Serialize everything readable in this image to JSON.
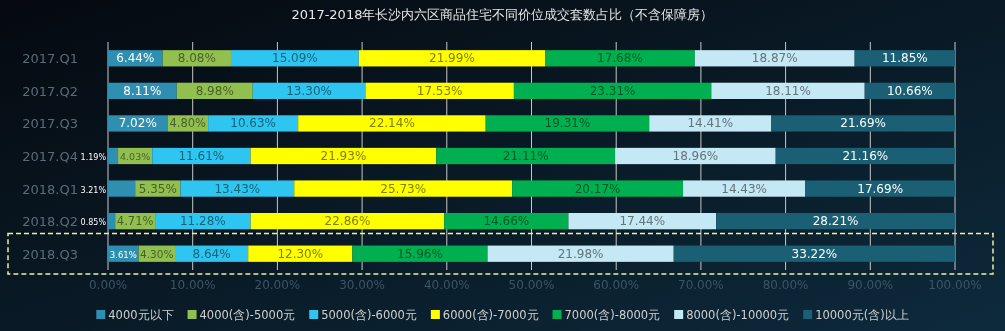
{
  "chart_data": {
    "type": "bar",
    "orientation": "horizontal",
    "stacked": true,
    "title": "2017-2018年长沙内六区商品住宅不同价位成交套数占比（不含保障房）",
    "categories": [
      "2017.Q1",
      "2017.Q2",
      "2017.Q3",
      "2017.Q4",
      "2018.Q1",
      "2018.Q2",
      "2018.Q3"
    ],
    "series": [
      {
        "name": "4000元以下",
        "color": "#2e8fb0",
        "values": [
          6.44,
          8.11,
          7.02,
          1.19,
          3.21,
          0.85,
          3.61
        ],
        "value_labels": [
          "6.44%",
          "8.11%",
          "7.02%",
          "1.19%",
          "3.21%",
          "0.85%",
          "3.61%"
        ]
      },
      {
        "name": "4000(含)-5000元",
        "color": "#92c050",
        "values": [
          8.08,
          8.98,
          4.8,
          4.03,
          5.35,
          4.71,
          4.3
        ],
        "value_labels": [
          "8.08%",
          "8.98%",
          "4.80%",
          "4.03%",
          "5.35%",
          "4.71%",
          "4.30%"
        ]
      },
      {
        "name": "5000(含)-6000元",
        "color": "#2ec5f0",
        "values": [
          15.09,
          13.3,
          10.63,
          11.61,
          13.43,
          11.28,
          8.64
        ],
        "value_labels": [
          "15.09%",
          "13.30%",
          "10.63%",
          "11.61%",
          "13.43%",
          "11.28%",
          "8.64%"
        ]
      },
      {
        "name": "6000(含)-7000元",
        "color": "#ffff00",
        "values": [
          21.99,
          17.53,
          22.14,
          21.93,
          25.73,
          22.86,
          12.3
        ],
        "value_labels": [
          "21.99%",
          "17.53%",
          "22.14%",
          "21.93%",
          "25.73%",
          "22.86%",
          "12.30%"
        ]
      },
      {
        "name": "7000(含)-8000元",
        "color": "#00b050",
        "values": [
          17.68,
          23.31,
          19.31,
          21.11,
          20.17,
          14.66,
          15.96
        ],
        "value_labels": [
          "17.68%",
          "23.31%",
          "19.31%",
          "21.11%",
          "20.17%",
          "14.66%",
          "15.96%"
        ]
      },
      {
        "name": "8000(含)-10000元",
        "color": "#c5e8f5",
        "values": [
          18.87,
          18.11,
          14.41,
          18.96,
          14.43,
          17.44,
          21.98
        ],
        "value_labels": [
          "18.87%",
          "18.11%",
          "14.41%",
          "18.96%",
          "14.43%",
          "17.44%",
          "21.98%"
        ]
      },
      {
        "name": "10000元(含)以上",
        "color": "#1a5f73",
        "values": [
          11.85,
          10.66,
          21.69,
          21.16,
          17.69,
          28.21,
          33.22
        ],
        "value_labels": [
          "11.85%",
          "10.66%",
          "21.69%",
          "21.16%",
          "17.69%",
          "28.21%",
          "33.22%"
        ]
      }
    ],
    "xlim": [
      0,
      100
    ],
    "xticks": [
      {
        "value": 0,
        "label": "0.00%"
      },
      {
        "value": 10,
        "label": "10.00%"
      },
      {
        "value": 20,
        "label": "20.00%"
      },
      {
        "value": 30,
        "label": "30.00%"
      },
      {
        "value": 40,
        "label": "40.00%"
      },
      {
        "value": 50,
        "label": "50.00%"
      },
      {
        "value": 60,
        "label": "60.00%"
      },
      {
        "value": 70,
        "label": "70.00%"
      },
      {
        "value": 80,
        "label": "80.00%"
      },
      {
        "value": 90,
        "label": "90.00%"
      },
      {
        "value": 100,
        "label": "100.00%"
      }
    ],
    "grid": "x",
    "legend": "bottom"
  }
}
